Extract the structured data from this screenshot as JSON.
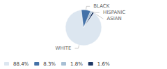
{
  "chart_data": {
    "type": "pie",
    "categories": [
      "WHITE",
      "ASIAN",
      "HISPANIC",
      "BLACK"
    ],
    "values": [
      88.4,
      1.6,
      1.8,
      8.3
    ],
    "value_labels": [
      "88.4%",
      "1.6%",
      "1.8%",
      "8.3%"
    ],
    "colors": [
      "#dce6f0",
      "#1f3864",
      "#a8bfd4",
      "#4472a8"
    ],
    "legend_labels": [
      "88.4%",
      "8.3%",
      "1.8%",
      "1.6%"
    ],
    "legend": "lower left"
  }
}
